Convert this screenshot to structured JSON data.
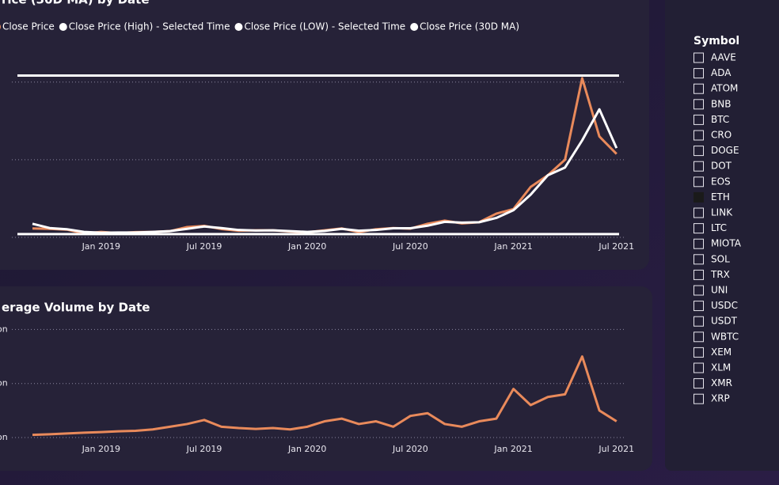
{
  "chart_data": [
    {
      "type": "line",
      "title": "rice (30D MA) by Date",
      "x": [
        "2018-09",
        "2018-10",
        "2018-11",
        "2018-12",
        "2019-01",
        "2019-02",
        "2019-03",
        "2019-04",
        "2019-05",
        "2019-06",
        "2019-07",
        "2019-08",
        "2019-09",
        "2019-10",
        "2019-11",
        "2019-12",
        "2020-01",
        "2020-02",
        "2020-03",
        "2020-04",
        "2020-05",
        "2020-06",
        "2020-07",
        "2020-08",
        "2020-09",
        "2020-10",
        "2020-11",
        "2020-12",
        "2021-01",
        "2021-02",
        "2021-03",
        "2021-04",
        "2021-05",
        "2021-06",
        "2021-07"
      ],
      "series": [
        {
          "name": "Close Price",
          "color": "#e98a5b",
          "values": [
            230,
            220,
            200,
            100,
            140,
            110,
            135,
            140,
            160,
            265,
            295,
            215,
            170,
            180,
            180,
            150,
            130,
            180,
            230,
            135,
            210,
            240,
            225,
            350,
            430,
            360,
            390,
            610,
            730,
            1300,
            1600,
            2000,
            4100,
            2600,
            2150
          ]
        },
        {
          "name": "Close Price (High) - Selected Time",
          "color": "#ffffff",
          "value": 4170
        },
        {
          "name": "Close Price (LOW) - Selected Time",
          "color": "#ffffff",
          "value": 85
        },
        {
          "name": "Close Price (30D MA)",
          "color": "#ffffff",
          "values": [
            350,
            240,
            210,
            140,
            120,
            125,
            125,
            140,
            160,
            220,
            280,
            240,
            190,
            175,
            180,
            160,
            140,
            165,
            220,
            170,
            190,
            235,
            235,
            300,
            400,
            380,
            390,
            500,
            700,
            1100,
            1600,
            1800,
            2500,
            3300,
            2300
          ]
        }
      ],
      "ylim": [
        0,
        4200
      ],
      "yticks": [
        0,
        2000,
        4000
      ],
      "grid": true,
      "xticks": [
        {
          "value": "2019-01",
          "label": "Jan 2019"
        },
        {
          "value": "2019-07",
          "label": "Jul 2019"
        },
        {
          "value": "2020-01",
          "label": "Jan 2020"
        },
        {
          "value": "2020-07",
          "label": "Jul 2020"
        },
        {
          "value": "2021-01",
          "label": "Jan 2021"
        },
        {
          "value": "2021-07",
          "label": "Jul 2021"
        }
      ]
    },
    {
      "type": "line",
      "title": "erage Volume by Date",
      "x": [
        "2018-09",
        "2018-10",
        "2018-11",
        "2018-12",
        "2019-01",
        "2019-02",
        "2019-03",
        "2019-04",
        "2019-05",
        "2019-06",
        "2019-07",
        "2019-08",
        "2019-09",
        "2019-10",
        "2019-11",
        "2019-12",
        "2020-01",
        "2020-02",
        "2020-03",
        "2020-04",
        "2020-05",
        "2020-06",
        "2020-07",
        "2020-08",
        "2020-09",
        "2020-10",
        "2020-11",
        "2020-12",
        "2021-01",
        "2021-02",
        "2021-03",
        "2021-04",
        "2021-05",
        "2021-06",
        "2021-07"
      ],
      "series": [
        {
          "name": "Volume",
          "color": "#e98a5b",
          "values": [
            1,
            1.2,
            1.5,
            1.8,
            2,
            2.3,
            2.5,
            3,
            4,
            5,
            6.5,
            4,
            3.5,
            3.2,
            3.5,
            3,
            4,
            6,
            7,
            5,
            6,
            4,
            8,
            9,
            5,
            4,
            6,
            7,
            18,
            12,
            15,
            16,
            30,
            10,
            6
          ]
        }
      ],
      "ylim": [
        0,
        41
      ],
      "yticks": [
        {
          "value": 0,
          "label": "on"
        },
        {
          "value": 20,
          "label": "on"
        },
        {
          "value": 40,
          "label": "on"
        }
      ],
      "grid": true,
      "xticks": [
        {
          "value": "2019-01",
          "label": "Jan 2019"
        },
        {
          "value": "2019-07",
          "label": "Jul 2019"
        },
        {
          "value": "2020-01",
          "label": "Jan 2020"
        },
        {
          "value": "2020-07",
          "label": "Jul 2020"
        },
        {
          "value": "2021-01",
          "label": "Jan 2021"
        },
        {
          "value": "2021-07",
          "label": "Jul 2021"
        }
      ]
    }
  ],
  "slicer": {
    "title": "Symbol",
    "items": [
      {
        "label": "AAVE",
        "checked": false
      },
      {
        "label": "ADA",
        "checked": false
      },
      {
        "label": "ATOM",
        "checked": false
      },
      {
        "label": "BNB",
        "checked": false
      },
      {
        "label": "BTC",
        "checked": false
      },
      {
        "label": "CRO",
        "checked": false
      },
      {
        "label": "DOGE",
        "checked": false
      },
      {
        "label": "DOT",
        "checked": false
      },
      {
        "label": "EOS",
        "checked": false
      },
      {
        "label": "ETH",
        "checked": true
      },
      {
        "label": "LINK",
        "checked": false
      },
      {
        "label": "LTC",
        "checked": false
      },
      {
        "label": "MIOTA",
        "checked": false
      },
      {
        "label": "SOL",
        "checked": false
      },
      {
        "label": "TRX",
        "checked": false
      },
      {
        "label": "UNI",
        "checked": false
      },
      {
        "label": "USDC",
        "checked": false
      },
      {
        "label": "USDT",
        "checked": false
      },
      {
        "label": "WBTC",
        "checked": false
      },
      {
        "label": "XEM",
        "checked": false
      },
      {
        "label": "XLM",
        "checked": false
      },
      {
        "label": "XMR",
        "checked": false
      },
      {
        "label": "XRP",
        "checked": false
      }
    ]
  }
}
